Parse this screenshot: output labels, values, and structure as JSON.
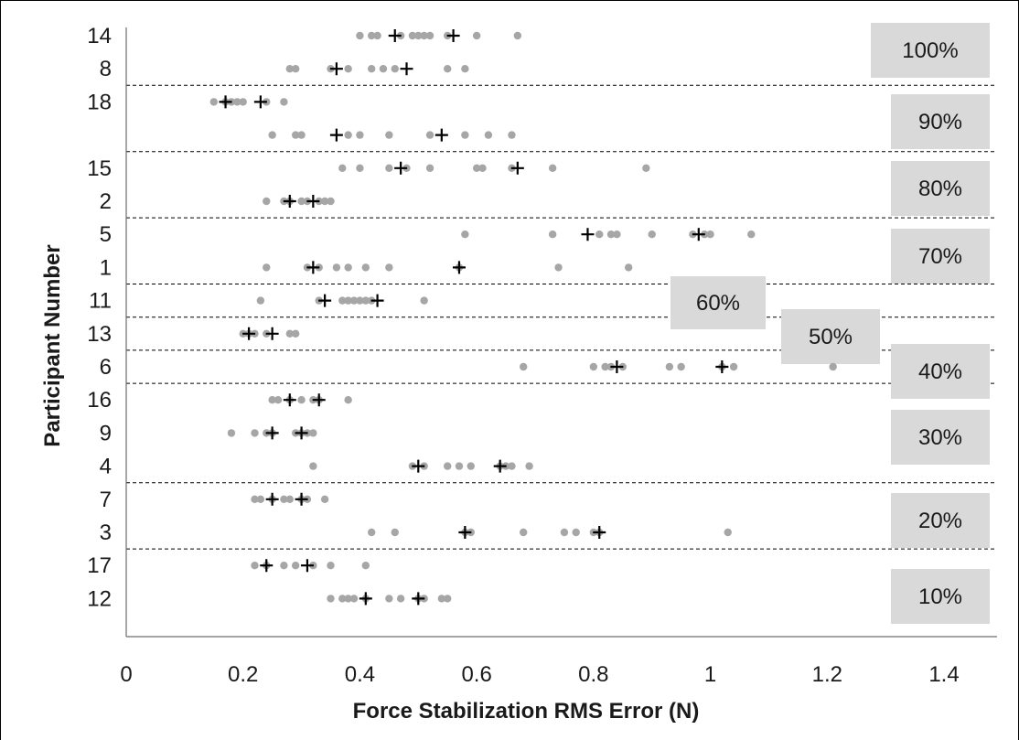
{
  "chart_data": {
    "type": "scatter",
    "title": "",
    "xlabel": "Force Stabilization RMS Error (N)",
    "ylabel": "Participant Number",
    "xlim": [
      0,
      1.4
    ],
    "x_ticks": [
      "0",
      "0.2",
      "0.4",
      "0.6",
      "0.8",
      "1",
      "1.2",
      "1.4"
    ],
    "x_tick_values": [
      0,
      0.2,
      0.4,
      0.6,
      0.8,
      1.0,
      1.2,
      1.4
    ],
    "grid": false,
    "colors": {
      "trial_marker": "#a6a6a6",
      "mean_marker": "#000000",
      "label_box": "#d9d9d9",
      "separator": "#000000"
    },
    "series": [
      {
        "name": "",
        "marker": "grey-dot"
      },
      {
        "name": "",
        "marker": "black-plus"
      }
    ],
    "rows": [
      {
        "label": "14",
        "trials": [
          0.4,
          0.42,
          0.43,
          0.47,
          0.49,
          0.5,
          0.51,
          0.52,
          0.55,
          0.6,
          0.67
        ],
        "means": [
          0.46,
          0.56
        ]
      },
      {
        "label": "8",
        "trials": [
          0.28,
          0.29,
          0.35,
          0.38,
          0.42,
          0.44,
          0.46,
          0.55,
          0.58
        ],
        "means": [
          0.36,
          0.48
        ]
      },
      {
        "label": "18",
        "trials": [
          0.15,
          0.17,
          0.18,
          0.19,
          0.2,
          0.24,
          0.27
        ],
        "means": [
          0.17,
          0.23
        ]
      },
      {
        "label": "",
        "trials": [
          0.25,
          0.29,
          0.3,
          0.38,
          0.4,
          0.45,
          0.52,
          0.58,
          0.62,
          0.66
        ],
        "means": [
          0.36,
          0.54
        ]
      },
      {
        "label": "15",
        "trials": [
          0.37,
          0.4,
          0.45,
          0.48,
          0.52,
          0.6,
          0.61,
          0.66,
          0.73,
          0.89
        ],
        "means": [
          0.47,
          0.67
        ]
      },
      {
        "label": "2",
        "trials": [
          0.24,
          0.27,
          0.28,
          0.3,
          0.31,
          0.33,
          0.34,
          0.35
        ],
        "means": [
          0.28,
          0.32
        ]
      },
      {
        "label": "5",
        "trials": [
          0.58,
          0.73,
          0.81,
          0.83,
          0.84,
          0.9,
          0.97,
          0.99,
          1.0,
          1.07
        ],
        "means": [
          0.79,
          0.98
        ]
      },
      {
        "label": "1",
        "trials": [
          0.24,
          0.31,
          0.33,
          0.36,
          0.38,
          0.41,
          0.45,
          0.57,
          0.74,
          0.86
        ],
        "means": [
          0.32,
          0.57
        ]
      },
      {
        "label": "11",
        "trials": [
          0.23,
          0.33,
          0.37,
          0.38,
          0.39,
          0.4,
          0.41,
          0.42,
          0.51
        ],
        "means": [
          0.34,
          0.43
        ]
      },
      {
        "label": "13",
        "trials": [
          0.2,
          0.21,
          0.22,
          0.24,
          0.28,
          0.29
        ],
        "means": [
          0.21,
          0.25
        ]
      },
      {
        "label": "6",
        "trials": [
          0.68,
          0.8,
          0.82,
          0.83,
          0.85,
          0.93,
          0.95,
          1.02,
          1.04,
          1.21
        ],
        "means": [
          0.84,
          1.02
        ]
      },
      {
        "label": "16",
        "trials": [
          0.25,
          0.26,
          0.28,
          0.3,
          0.32,
          0.33,
          0.38
        ],
        "means": [
          0.28,
          0.33
        ]
      },
      {
        "label": "9",
        "trials": [
          0.18,
          0.22,
          0.24,
          0.25,
          0.29,
          0.3,
          0.31,
          0.32
        ],
        "means": [
          0.25,
          0.3
        ]
      },
      {
        "label": "4",
        "trials": [
          0.32,
          0.49,
          0.51,
          0.55,
          0.57,
          0.59,
          0.64,
          0.65,
          0.66,
          0.69
        ],
        "means": [
          0.5,
          0.64
        ]
      },
      {
        "label": "7",
        "trials": [
          0.22,
          0.23,
          0.25,
          0.27,
          0.28,
          0.3,
          0.31,
          0.34
        ],
        "means": [
          0.25,
          0.3
        ]
      },
      {
        "label": "3",
        "trials": [
          0.42,
          0.46,
          0.58,
          0.59,
          0.68,
          0.75,
          0.77,
          0.8,
          0.81,
          1.03
        ],
        "means": [
          0.58,
          0.81
        ]
      },
      {
        "label": "17",
        "trials": [
          0.22,
          0.24,
          0.27,
          0.29,
          0.32,
          0.35,
          0.41
        ],
        "means": [
          0.24,
          0.31
        ]
      },
      {
        "label": "12",
        "trials": [
          0.35,
          0.37,
          0.38,
          0.39,
          0.41,
          0.45,
          0.47,
          0.5,
          0.51,
          0.54,
          0.55
        ],
        "means": [
          0.41,
          0.5
        ]
      }
    ],
    "groups": [
      {
        "label": "100%"
      },
      {
        "label": "90%"
      },
      {
        "label": "80%"
      },
      {
        "label": "70%"
      },
      {
        "label": "60%"
      },
      {
        "label": "50%"
      },
      {
        "label": "40%"
      },
      {
        "label": "30%"
      },
      {
        "label": "20%"
      },
      {
        "label": "10%"
      }
    ]
  }
}
